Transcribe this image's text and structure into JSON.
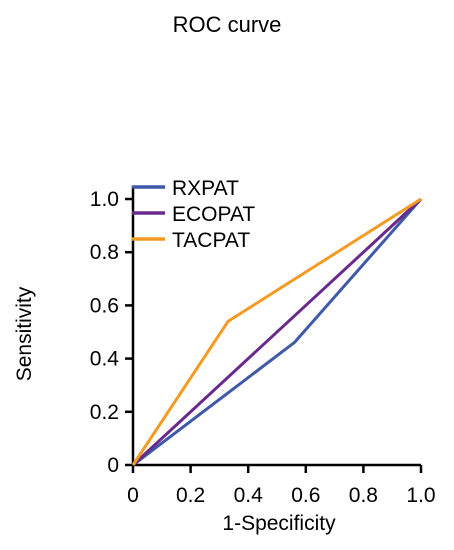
{
  "chart_data": {
    "type": "line",
    "title": "ROC curve",
    "xlabel": "1-Specificity",
    "ylabel": "Sensitivity",
    "xlim": [
      0,
      1
    ],
    "ylim": [
      0,
      1
    ],
    "x_ticks": [
      0,
      0.2,
      0.4,
      0.6,
      0.8,
      1.0
    ],
    "x_tick_labels": [
      "0",
      "0.2",
      "0.4",
      "0.6",
      "0.8",
      "1.0"
    ],
    "y_ticks": [
      0,
      0.2,
      0.4,
      0.6,
      0.8,
      1.0
    ],
    "y_tick_labels": [
      "0",
      "0.2",
      "0.4",
      "0.6",
      "0.8",
      "1.0"
    ],
    "grid": false,
    "legend_position": "top-left",
    "series": [
      {
        "name": "RXPAT",
        "color": "#3f5aa8",
        "x": [
          0,
          0.56,
          1.0
        ],
        "y": [
          0,
          0.46,
          1.0
        ]
      },
      {
        "name": "ECOPAT",
        "color": "#6a2a8c",
        "x": [
          0,
          1.0
        ],
        "y": [
          0,
          1.0
        ]
      },
      {
        "name": "TACPAT",
        "color": "#f59a23",
        "x": [
          0,
          0.33,
          1.0
        ],
        "y": [
          0,
          0.54,
          1.0
        ]
      }
    ]
  }
}
